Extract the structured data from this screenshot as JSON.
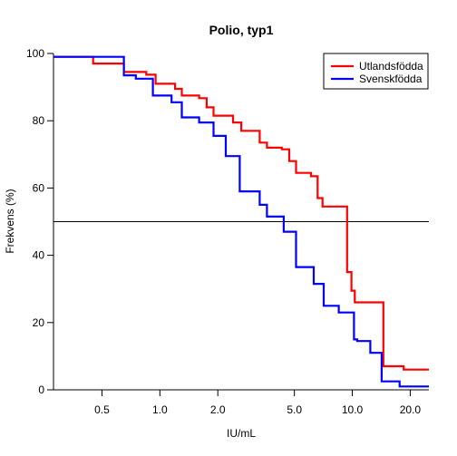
{
  "chart_data": {
    "type": "line",
    "title": "Polio, typ1",
    "xlabel": "IU/mL",
    "ylabel": "Frekvens (%)",
    "x_scale": "log",
    "xlim": [
      0.28,
      25
    ],
    "ylim": [
      0,
      100
    ],
    "xticks": [
      0.5,
      1.0,
      2.0,
      5.0,
      10.0,
      20.0
    ],
    "xtick_labels": [
      "0.5",
      "1.0",
      "2.0",
      "5.0",
      "10.0",
      "20.0"
    ],
    "yticks": [
      0,
      20,
      40,
      60,
      80,
      100
    ],
    "ytick_labels": [
      "0",
      "20",
      "40",
      "60",
      "80",
      "100"
    ],
    "reference_line_y": 50,
    "legend_position": "top-right",
    "series": [
      {
        "name": "Utlandsfödda",
        "color": "#ff0000",
        "step": true,
        "x": [
          0.28,
          0.45,
          0.65,
          0.85,
          0.95,
          1.2,
          1.3,
          1.6,
          1.75,
          1.9,
          2.4,
          2.65,
          3.3,
          3.6,
          4.3,
          4.7,
          5.1,
          6.1,
          6.6,
          7.0,
          9.4,
          9.9,
          10.3,
          14.5,
          15.8,
          18.5,
          25
        ],
        "y": [
          99,
          97,
          94.5,
          93.7,
          91,
          89.5,
          87.5,
          86.7,
          84,
          81.5,
          79.5,
          77,
          73.5,
          72,
          71.5,
          68,
          64.5,
          63.5,
          57,
          54.5,
          35,
          29.5,
          26,
          7,
          7,
          6,
          6
        ]
      },
      {
        "name": "Svenskfödda",
        "color": "#0000ff",
        "step": true,
        "x": [
          0.28,
          0.65,
          0.75,
          0.92,
          1.15,
          1.3,
          1.6,
          1.9,
          2.2,
          2.6,
          3.3,
          3.6,
          4.4,
          5.1,
          6.3,
          7.1,
          8.5,
          10.2,
          10.6,
          12.4,
          14.2,
          17.6,
          25
        ],
        "y": [
          99,
          93.5,
          92.5,
          87.5,
          85.5,
          81,
          79.5,
          75.5,
          69.5,
          59,
          55,
          51.5,
          47,
          36.5,
          31.5,
          25,
          23,
          15,
          14.5,
          11,
          2.5,
          1,
          1
        ]
      }
    ]
  }
}
